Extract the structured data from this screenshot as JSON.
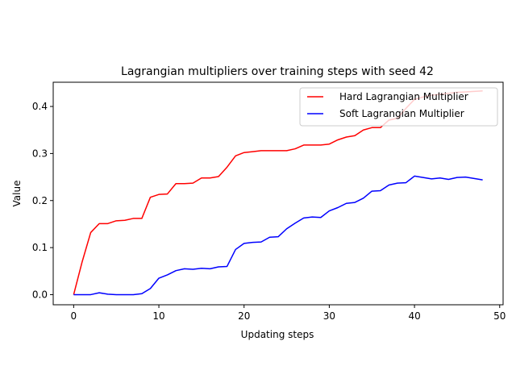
{
  "chart_data": {
    "type": "line",
    "title": "Lagrangian multipliers over training steps with seed 42",
    "xlabel": "Updating steps",
    "ylabel": "Value",
    "xlim": [
      -2.4,
      50.4
    ],
    "ylim": [
      -0.0215,
      0.4515
    ],
    "xticks": [
      0,
      10,
      20,
      30,
      40,
      50
    ],
    "yticks": [
      0.0,
      0.1,
      0.2,
      0.3,
      0.4
    ],
    "xtick_labels": [
      "0",
      "10",
      "20",
      "30",
      "40",
      "50"
    ],
    "ytick_labels": [
      "0.0",
      "0.1",
      "0.2",
      "0.3",
      "0.4"
    ],
    "grid": false,
    "legend_position": "top-right",
    "x": [
      0,
      1,
      2,
      3,
      4,
      5,
      6,
      7,
      8,
      9,
      10,
      11,
      12,
      13,
      14,
      15,
      16,
      17,
      18,
      19,
      20,
      21,
      22,
      23,
      24,
      25,
      26,
      27,
      28,
      29,
      30,
      31,
      32,
      33,
      34,
      35,
      36,
      37,
      38,
      39,
      40,
      41,
      42,
      43,
      44,
      45,
      46,
      47,
      48
    ],
    "series": [
      {
        "name": "Hard Lagrangian Multiplier",
        "color": "#ff0000",
        "values": [
          0.0,
          0.07,
          0.132,
          0.151,
          0.151,
          0.157,
          0.158,
          0.162,
          0.162,
          0.207,
          0.213,
          0.214,
          0.236,
          0.236,
          0.237,
          0.248,
          0.248,
          0.251,
          0.271,
          0.295,
          0.302,
          0.304,
          0.306,
          0.306,
          0.306,
          0.306,
          0.31,
          0.318,
          0.318,
          0.318,
          0.32,
          0.329,
          0.335,
          0.338,
          0.35,
          0.355,
          0.355,
          0.371,
          0.375,
          0.396,
          0.415,
          0.42,
          0.424,
          0.426,
          0.428,
          0.43,
          0.431,
          0.432,
          0.433
        ]
      },
      {
        "name": "Soft Lagrangian Multiplier",
        "color": "#0000ff",
        "values": [
          0.0,
          0.0,
          0.0,
          0.004,
          0.001,
          0.0,
          0.0,
          0.0,
          0.002,
          0.013,
          0.035,
          0.042,
          0.051,
          0.055,
          0.054,
          0.056,
          0.055,
          0.059,
          0.06,
          0.096,
          0.109,
          0.111,
          0.112,
          0.122,
          0.123,
          0.14,
          0.152,
          0.163,
          0.165,
          0.164,
          0.178,
          0.185,
          0.194,
          0.196,
          0.205,
          0.22,
          0.221,
          0.233,
          0.237,
          0.238,
          0.252,
          0.249,
          0.246,
          0.248,
          0.245,
          0.249,
          0.25,
          0.247,
          0.244
        ]
      }
    ]
  }
}
